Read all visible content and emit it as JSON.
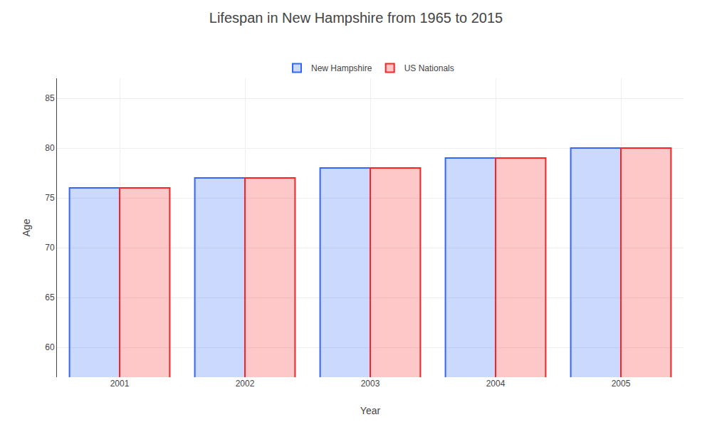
{
  "chart_data": {
    "type": "bar",
    "title": "Lifespan in New Hampshire from 1965 to 2015",
    "xlabel": "Year",
    "ylabel": "Age",
    "categories": [
      "2001",
      "2002",
      "2003",
      "2004",
      "2005"
    ],
    "series": [
      {
        "name": "New Hampshire",
        "color": "#3366ff",
        "values": [
          76,
          77,
          78,
          79,
          80
        ]
      },
      {
        "name": "US Nationals",
        "color": "#ff2222",
        "values": [
          76,
          77,
          78,
          79,
          80
        ]
      }
    ],
    "ylim": [
      57,
      87
    ],
    "yticks": [
      60,
      65,
      70,
      75,
      80,
      85
    ],
    "grid": true,
    "legend": "top"
  }
}
